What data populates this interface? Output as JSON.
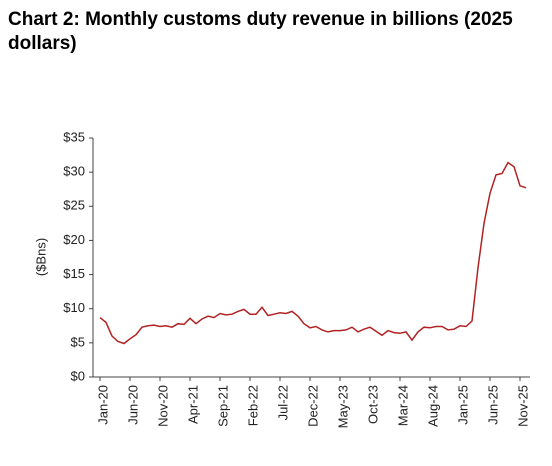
{
  "chart_data": {
    "type": "line",
    "title": "Chart 2: Monthly customs duty revenue in billions (2025 dollars)",
    "y_label": "($Bns)",
    "categories": [
      "Jan-20",
      null,
      null,
      null,
      null,
      "Jun-20",
      null,
      null,
      null,
      null,
      "Nov-20",
      null,
      null,
      null,
      null,
      "Apr-21",
      null,
      null,
      null,
      null,
      "Sep-21",
      null,
      null,
      null,
      null,
      "Feb-22",
      null,
      null,
      null,
      null,
      "Jul-22",
      null,
      null,
      null,
      null,
      "Dec-22",
      null,
      null,
      null,
      null,
      "May-23",
      null,
      null,
      null,
      null,
      "Oct-23",
      null,
      null,
      null,
      null,
      "Mar-24",
      null,
      null,
      null,
      null,
      "Aug-24",
      null,
      null,
      null,
      null,
      "Jan-25",
      null,
      null,
      null,
      null,
      "Jun-25",
      null,
      null,
      null,
      null,
      "Nov-25",
      null
    ],
    "series": [
      {
        "name": "Customs duty revenue",
        "color": "#b22222",
        "values": [
          8.7,
          8.0,
          6.0,
          5.2,
          4.9,
          5.6,
          6.2,
          7.3,
          7.5,
          7.6,
          7.4,
          7.5,
          7.3,
          7.8,
          7.7,
          8.6,
          7.8,
          8.5,
          8.9,
          8.7,
          9.3,
          9.1,
          9.2,
          9.6,
          9.9,
          9.2,
          9.2,
          10.2,
          9.0,
          9.2,
          9.4,
          9.3,
          9.6,
          8.9,
          7.8,
          7.2,
          7.4,
          6.9,
          6.6,
          6.8,
          6.8,
          6.9,
          7.3,
          6.6,
          7.0,
          7.3,
          6.7,
          6.1,
          6.8,
          6.5,
          6.4,
          6.6,
          5.4,
          6.6,
          7.3,
          7.2,
          7.4,
          7.4,
          6.9,
          7.0,
          7.5,
          7.4,
          8.2,
          16.0,
          22.5,
          26.9,
          29.6,
          29.8,
          31.4,
          30.8,
          28.0,
          27.7
        ]
      }
    ],
    "ylim": [
      0,
      35
    ],
    "yticks": [
      {
        "value": 0,
        "label": "$0"
      },
      {
        "value": 5,
        "label": "$5"
      },
      {
        "value": 10,
        "label": "$10"
      },
      {
        "value": 15,
        "label": "$15"
      },
      {
        "value": 20,
        "label": "$20"
      },
      {
        "value": 25,
        "label": "$25"
      },
      {
        "value": 30,
        "label": "$30"
      },
      {
        "value": 35,
        "label": "$35"
      }
    ],
    "grid": false
  }
}
